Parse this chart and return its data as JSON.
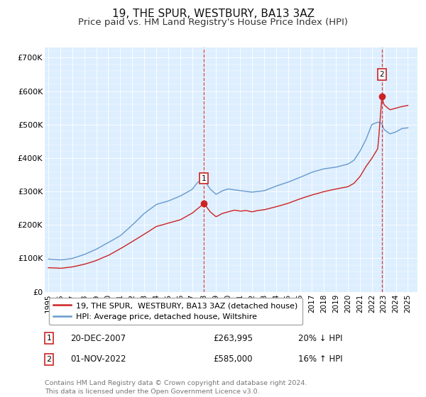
{
  "title": "19, THE SPUR, WESTBURY, BA13 3AZ",
  "subtitle": "Price paid vs. HM Land Registry's House Price Index (HPI)",
  "title_fontsize": 11,
  "subtitle_fontsize": 9.5,
  "background_color": "#ffffff",
  "plot_bg_color": "#ddeeff",
  "ylim": [
    0,
    730000
  ],
  "yticks": [
    0,
    100000,
    200000,
    300000,
    400000,
    500000,
    600000,
    700000
  ],
  "ytick_labels": [
    "£0",
    "£100K",
    "£200K",
    "£300K",
    "£400K",
    "£500K",
    "£600K",
    "£700K"
  ],
  "xlim_start": 1994.7,
  "xlim_end": 2025.8,
  "xticks": [
    1995,
    1996,
    1997,
    1998,
    1999,
    2000,
    2001,
    2002,
    2003,
    2004,
    2005,
    2006,
    2007,
    2008,
    2009,
    2010,
    2011,
    2012,
    2013,
    2014,
    2015,
    2016,
    2017,
    2018,
    2019,
    2020,
    2021,
    2022,
    2023,
    2024,
    2025
  ],
  "hpi_color": "#6699cc",
  "price_color": "#cc2222",
  "vline_color": "#cc2222",
  "annotation_box_color": "#cc2222",
  "sale1_x": 2007.97,
  "sale1_y": 263995,
  "sale1_label": "1",
  "sale2_x": 2022.83,
  "sale2_y": 585000,
  "sale2_label": "2",
  "legend_entries": [
    {
      "label": "19, THE SPUR,  WESTBURY, BA13 3AZ (detached house)",
      "color": "#cc2222"
    },
    {
      "label": "HPI: Average price, detached house, Wiltshire",
      "color": "#6699cc"
    }
  ],
  "annotation1": {
    "num": "1",
    "date": "20-DEC-2007",
    "price": "£263,995",
    "pct": "20% ↓ HPI"
  },
  "annotation2": {
    "num": "2",
    "date": "01-NOV-2022",
    "price": "£585,000",
    "pct": "16% ↑ HPI"
  },
  "footer": "Contains HM Land Registry data © Crown copyright and database right 2024.\nThis data is licensed under the Open Government Licence v3.0."
}
